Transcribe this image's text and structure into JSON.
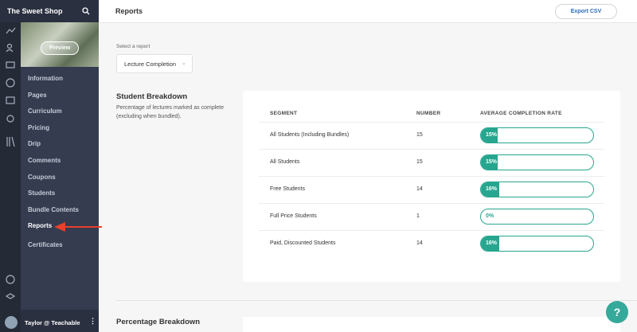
{
  "sidebar": {
    "school": "The Sweet Shop",
    "preview": "Preview",
    "nav": [
      "Information",
      "Pages",
      "Curriculum",
      "Pricing",
      "Drip",
      "Comments",
      "Coupons",
      "Students",
      "Bundle Contents",
      "Reports",
      "Certificates"
    ],
    "active": 9,
    "user": "Taylor @ Teachable"
  },
  "header": {
    "title": "Reports",
    "button": "Export CSV"
  },
  "select": {
    "label": "Select a report",
    "value": "Lecture Completion"
  },
  "student_breakdown": {
    "title": "Student Breakdown",
    "description": "Percentage of lectures marked as complete (excluding when bundled).",
    "table": {
      "columns": [
        "SEGMENT",
        "NUMBER",
        "AVERAGE COMPLETION RATE"
      ],
      "rows": [
        {
          "segment": "All Students (Including Bundles)",
          "number": 15,
          "rate": 15,
          "rate_label": "15%"
        },
        {
          "segment": "All Students",
          "number": 15,
          "rate": 15,
          "rate_label": "15%"
        },
        {
          "segment": "Free Students",
          "number": 14,
          "rate": 16,
          "rate_label": "16%"
        },
        {
          "segment": "Full Price Students",
          "number": 1,
          "rate": 0,
          "rate_label": "0%"
        },
        {
          "segment": "Paid, Discounted Students",
          "number": 14,
          "rate": 16,
          "rate_label": "16%"
        }
      ]
    }
  },
  "percentage_breakdown": {
    "title": "Percentage Breakdown"
  },
  "help": "?"
}
